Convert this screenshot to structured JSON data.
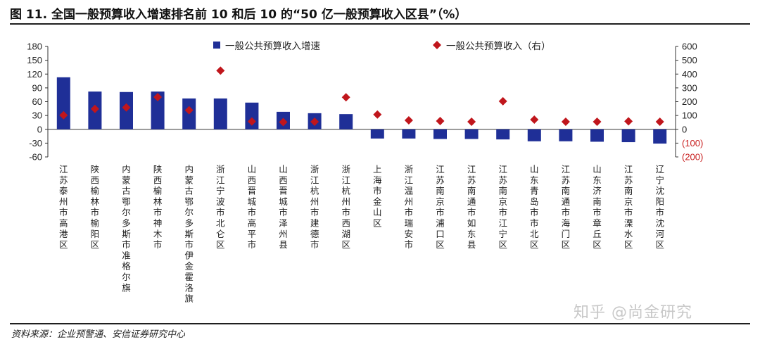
{
  "header": {
    "title": "图 11. 全国一般预算收入增速排名前 10 和后 10 的“50 亿一般预算收入区县”（%）"
  },
  "footer": {
    "source": "资料来源：企业预警通、安信证券研究中心"
  },
  "watermark": "知乎 @尚金研究",
  "colors": {
    "bar": "#1f2f97",
    "marker": "#c0161c",
    "negative_tick": "#c81e1e"
  },
  "chart_data": {
    "type": "bar",
    "categories": [
      "江苏泰州市高港区",
      "陕西榆林市榆阳区",
      "内蒙古鄂尔多斯市准格尔旗",
      "陕西榆林市神木市",
      "内蒙古鄂尔多斯市伊金霍洛旗",
      "浙江宁波市北仑区",
      "山西晋城市高平市",
      "山西晋城市泽州县",
      "浙江杭州市建德市",
      "浙江杭州市西湖区",
      "上海市金山区",
      "浙江温州市瑞安市",
      "江苏南京市浦口区",
      "江苏南通市如东县",
      "江苏南京市江宁区",
      "山东青岛市市北区",
      "江苏南通市海门区",
      "山东济南市章丘区",
      "江苏南京市溧水区",
      "辽宁沈阳市沈河区"
    ],
    "series": [
      {
        "name": "一般公共预算收入增速",
        "type": "bar",
        "axis": "left",
        "values": [
          113,
          82,
          81,
          82,
          67,
          67,
          58,
          38,
          35,
          33,
          -20,
          -20,
          -21,
          -21,
          -22,
          -26,
          -26,
          -27,
          -28,
          -31
        ]
      },
      {
        "name": "一般公共预算收入（右）",
        "type": "scatter",
        "marker": "diamond",
        "axis": "right",
        "values": [
          102,
          148,
          158,
          233,
          138,
          425,
          57,
          52,
          55,
          232,
          107,
          65,
          60,
          55,
          203,
          70,
          55,
          55,
          58,
          55
        ]
      }
    ],
    "y_left": {
      "ylim": [
        -60,
        180
      ],
      "ticks": [
        180,
        150,
        120,
        90,
        60,
        30,
        0,
        -30,
        -60
      ],
      "tick_labels": [
        "180",
        "150",
        "120",
        "90",
        "60",
        "30",
        "0",
        "-30",
        "-60"
      ]
    },
    "y_right": {
      "ylim": [
        -200,
        600
      ],
      "ticks": [
        600,
        500,
        400,
        300,
        200,
        100,
        0,
        -100,
        -200
      ],
      "tick_labels": [
        "600",
        "500",
        "400",
        "300",
        "200",
        "100",
        "0",
        "(100)",
        "(200)"
      ]
    },
    "legend": "top",
    "grid": false
  }
}
